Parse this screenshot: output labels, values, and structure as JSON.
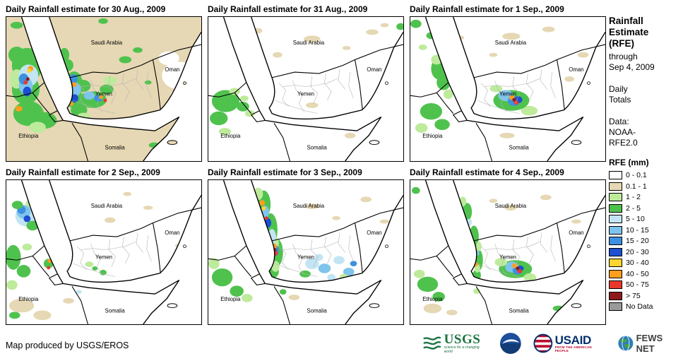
{
  "panels": [
    {
      "title": "Daily Rainfall estimate for 30 Aug., 2009",
      "base": 1,
      "patches": [
        [
          250,
          85,
          25,
          20,
          0
        ],
        [
          235,
          60,
          15,
          10,
          0
        ],
        [
          255,
          115,
          18,
          12,
          0
        ],
        [
          30,
          70,
          22,
          25,
          3
        ],
        [
          28,
          105,
          20,
          22,
          3
        ],
        [
          32,
          140,
          22,
          18,
          3
        ],
        [
          15,
          55,
          12,
          12,
          3
        ],
        [
          55,
          150,
          18,
          12,
          3
        ],
        [
          15,
          90,
          10,
          14,
          2
        ],
        [
          45,
          160,
          12,
          8,
          2
        ],
        [
          32,
          85,
          14,
          16,
          4
        ],
        [
          28,
          100,
          10,
          12,
          5
        ],
        [
          25,
          90,
          7,
          8,
          6
        ],
        [
          30,
          108,
          6,
          7,
          7
        ],
        [
          98,
          95,
          12,
          16,
          3
        ],
        [
          100,
          120,
          13,
          13,
          3
        ],
        [
          105,
          135,
          12,
          9,
          3
        ],
        [
          110,
          100,
          12,
          9,
          3
        ],
        [
          88,
          70,
          9,
          9,
          3
        ],
        [
          84,
          55,
          7,
          10,
          3
        ],
        [
          125,
          120,
          20,
          12,
          3
        ],
        [
          145,
          105,
          10,
          7,
          3
        ],
        [
          100,
          105,
          8,
          10,
          5
        ],
        [
          97,
          90,
          6,
          7,
          6
        ],
        [
          99,
          118,
          5,
          6,
          7
        ],
        [
          120,
          114,
          8,
          6,
          5
        ],
        [
          133,
          118,
          6,
          5,
          6
        ],
        [
          150,
          92,
          10,
          6,
          2
        ],
        [
          112,
          145,
          10,
          6,
          2
        ],
        [
          35,
          75,
          4,
          4,
          9
        ],
        [
          33,
          78,
          3,
          3,
          8
        ],
        [
          28,
          95,
          3,
          3,
          10
        ],
        [
          18,
          133,
          5,
          4,
          9
        ],
        [
          31,
          90,
          2.5,
          2.5,
          11
        ],
        [
          98,
          98,
          3.5,
          3.5,
          9
        ],
        [
          94,
          126,
          3,
          3,
          9
        ],
        [
          137,
          116,
          3,
          3,
          9
        ],
        [
          143,
          121,
          2.5,
          2.5,
          10
        ],
        [
          15,
          12,
          9,
          5,
          3
        ],
        [
          140,
          6,
          7,
          4,
          3
        ],
        [
          172,
          62,
          9,
          5,
          3
        ],
        [
          190,
          48,
          7,
          4,
          3
        ],
        [
          214,
          186,
          8,
          4,
          3
        ],
        [
          205,
          95,
          5,
          3,
          3
        ]
      ]
    },
    {
      "title": "Daily Rainfall estimate for 31 Aug., 2009",
      "base": 0,
      "patches": [
        [
          150,
          32,
          12,
          5,
          1
        ],
        [
          237,
          22,
          9,
          4,
          1
        ],
        [
          100,
          55,
          7,
          4,
          1
        ],
        [
          72,
          20,
          6,
          4,
          1
        ],
        [
          200,
          45,
          6,
          3,
          1
        ],
        [
          150,
          128,
          9,
          4,
          1
        ],
        [
          90,
          95,
          5,
          3,
          1
        ],
        [
          205,
          172,
          8,
          4,
          1
        ],
        [
          255,
          12,
          6,
          3,
          1
        ],
        [
          25,
          122,
          20,
          16,
          3
        ],
        [
          15,
          147,
          13,
          10,
          3
        ],
        [
          50,
          130,
          9,
          7,
          3
        ],
        [
          278,
          14,
          6,
          5,
          3
        ],
        [
          38,
          108,
          8,
          5,
          2
        ],
        [
          60,
          140,
          7,
          5,
          2
        ],
        [
          24,
          166,
          9,
          5,
          2
        ],
        [
          52,
          118,
          6,
          4,
          2
        ]
      ]
    },
    {
      "title": "Daily Rainfall estimate for 1 Sep., 2009",
      "base": 0,
      "patches": [
        [
          8,
          10,
          8,
          6,
          3
        ],
        [
          30,
          27,
          7,
          5,
          3
        ],
        [
          18,
          44,
          6,
          4,
          2
        ],
        [
          124,
          104,
          9,
          5,
          2
        ],
        [
          172,
          136,
          12,
          7,
          2
        ],
        [
          146,
          28,
          13,
          5,
          1
        ],
        [
          200,
          18,
          9,
          4,
          1
        ],
        [
          250,
          55,
          8,
          4,
          1
        ],
        [
          230,
          90,
          7,
          4,
          1
        ],
        [
          120,
          55,
          6,
          3,
          1
        ],
        [
          140,
          172,
          11,
          4,
          1
        ],
        [
          72,
          30,
          6,
          3,
          1
        ],
        [
          42,
          75,
          12,
          16,
          3
        ],
        [
          48,
          95,
          10,
          11,
          3
        ],
        [
          38,
          62,
          8,
          7,
          2
        ],
        [
          55,
          112,
          7,
          7,
          2
        ],
        [
          30,
          137,
          16,
          12,
          3
        ],
        [
          46,
          156,
          11,
          8,
          3
        ],
        [
          16,
          161,
          9,
          7,
          2
        ],
        [
          146,
          121,
          26,
          15,
          3
        ],
        [
          138,
          114,
          11,
          8,
          5
        ],
        [
          150,
          122,
          9,
          7,
          6
        ],
        [
          156,
          120,
          6,
          5,
          7
        ],
        [
          147,
          117,
          4,
          3.5,
          9
        ],
        [
          153,
          124,
          3.5,
          3,
          10
        ],
        [
          150,
          120,
          2.5,
          2.5,
          11
        ]
      ]
    },
    {
      "title": "Daily Rainfall estimate for 2 Sep., 2009",
      "base": 0,
      "patches": [
        [
          28,
          52,
          15,
          15,
          4
        ],
        [
          25,
          46,
          10,
          10,
          5
        ],
        [
          22,
          43,
          6,
          6,
          6
        ],
        [
          30,
          56,
          5,
          5,
          7
        ],
        [
          38,
          66,
          9,
          7,
          3
        ],
        [
          16,
          36,
          8,
          6,
          3
        ],
        [
          34,
          34,
          6,
          5,
          2
        ],
        [
          10,
          112,
          11,
          18,
          3
        ],
        [
          25,
          132,
          10,
          9,
          3
        ],
        [
          8,
          152,
          8,
          7,
          2
        ],
        [
          30,
          97,
          7,
          5,
          2
        ],
        [
          22,
          182,
          18,
          10,
          1
        ],
        [
          52,
          196,
          13,
          7,
          1
        ],
        [
          150,
          58,
          8,
          4,
          1
        ],
        [
          205,
          40,
          7,
          3,
          1
        ],
        [
          250,
          95,
          6,
          3,
          1
        ],
        [
          175,
          20,
          6,
          3,
          1
        ],
        [
          90,
          175,
          8,
          4,
          1
        ],
        [
          61,
          121,
          7,
          7,
          3
        ],
        [
          63,
          117,
          3.5,
          3,
          9
        ],
        [
          61,
          127,
          2.5,
          2.5,
          10
        ],
        [
          120,
          122,
          6,
          4,
          2
        ],
        [
          140,
          134,
          5,
          4,
          3
        ],
        [
          105,
          162,
          4,
          3,
          4
        ],
        [
          128,
          128,
          4,
          3,
          3
        ],
        [
          12,
          196,
          8,
          5,
          3
        ]
      ]
    },
    {
      "title": "Daily Rainfall estimate for 3 Sep., 2009",
      "base": 0,
      "patches": [
        [
          80,
          35,
          10,
          20,
          3
        ],
        [
          90,
          72,
          10,
          24,
          3
        ],
        [
          99,
          105,
          9,
          20,
          3
        ],
        [
          94,
          132,
          8,
          10,
          3
        ],
        [
          72,
          20,
          7,
          9,
          2
        ],
        [
          95,
          92,
          7,
          11,
          2
        ],
        [
          97,
          125,
          6,
          8,
          2
        ],
        [
          82,
          46,
          6,
          9,
          5
        ],
        [
          92,
          82,
          6,
          11,
          4
        ],
        [
          97,
          102,
          5,
          8,
          6
        ],
        [
          86,
          62,
          5,
          7,
          7
        ],
        [
          78,
          33,
          4,
          4,
          9
        ],
        [
          80,
          41,
          3,
          3,
          8
        ],
        [
          95,
          96,
          4,
          4,
          9
        ],
        [
          97,
          106,
          3.5,
          3.5,
          10
        ],
        [
          96,
          101,
          2.5,
          2.5,
          11
        ],
        [
          84,
          55,
          2.5,
          2.5,
          10
        ],
        [
          150,
          121,
          10,
          8,
          4
        ],
        [
          168,
          128,
          9,
          7,
          5
        ],
        [
          189,
          116,
          8,
          6,
          4
        ],
        [
          203,
          133,
          8,
          6,
          5
        ],
        [
          210,
          121,
          5,
          4,
          6
        ],
        [
          178,
          141,
          6,
          5,
          4
        ],
        [
          160,
          112,
          6,
          5,
          4
        ],
        [
          140,
          136,
          8,
          5,
          3
        ],
        [
          196,
          140,
          6,
          4,
          2
        ],
        [
          20,
          141,
          15,
          13,
          3
        ],
        [
          41,
          161,
          10,
          8,
          3
        ],
        [
          8,
          121,
          8,
          8,
          2
        ],
        [
          56,
          171,
          8,
          6,
          2
        ],
        [
          150,
          38,
          10,
          4,
          1
        ],
        [
          228,
          28,
          8,
          4,
          1
        ],
        [
          255,
          60,
          7,
          3,
          1
        ],
        [
          185,
          55,
          6,
          3,
          1
        ],
        [
          124,
          170,
          8,
          4,
          1
        ],
        [
          108,
          162,
          5,
          4,
          3
        ]
      ]
    },
    {
      "title": "Daily Rainfall estimate for 4 Sep., 2009",
      "base": 0,
      "patches": [
        [
          82,
          46,
          7,
          13,
          3
        ],
        [
          92,
          82,
          7,
          16,
          3
        ],
        [
          98,
          116,
          7,
          16,
          3
        ],
        [
          96,
          138,
          6,
          8,
          3
        ],
        [
          76,
          31,
          5,
          7,
          2
        ],
        [
          99,
          96,
          4,
          7,
          2
        ],
        [
          97,
          128,
          4,
          6,
          2
        ],
        [
          85,
          61,
          4,
          5,
          4
        ],
        [
          96,
          106,
          3.5,
          4,
          5
        ],
        [
          95,
          122,
          3,
          3,
          9
        ],
        [
          25,
          151,
          15,
          11,
          3
        ],
        [
          41,
          169,
          9,
          7,
          3
        ],
        [
          13,
          136,
          8,
          6,
          2
        ],
        [
          32,
          186,
          13,
          7,
          1
        ],
        [
          60,
          192,
          8,
          4,
          1
        ],
        [
          152,
          129,
          24,
          13,
          3
        ],
        [
          147,
          126,
          10,
          8,
          5
        ],
        [
          155,
          131,
          7,
          6,
          6
        ],
        [
          159,
          128,
          5,
          4,
          7
        ],
        [
          151,
          124,
          4,
          3.5,
          9
        ],
        [
          158,
          132,
          3.5,
          3,
          10
        ],
        [
          155,
          128,
          2.5,
          2.5,
          11
        ],
        [
          131,
          119,
          9,
          6,
          2
        ],
        [
          173,
          141,
          9,
          6,
          2
        ],
        [
          145,
          40,
          9,
          4,
          1
        ],
        [
          196,
          25,
          8,
          4,
          1
        ],
        [
          240,
          60,
          7,
          3,
          1
        ],
        [
          258,
          90,
          6,
          3,
          1
        ],
        [
          120,
          30,
          6,
          3,
          1
        ],
        [
          8,
          15,
          6,
          5,
          3
        ],
        [
          214,
          186,
          8,
          4,
          3
        ],
        [
          96,
          161,
          5,
          4,
          2
        ]
      ]
    }
  ],
  "map_labels": [
    "Saudi Arabia",
    "Oman",
    "Yemen",
    "Ethiopia",
    "Somalia"
  ],
  "sidebar": {
    "title": "Rainfall\nEstimate\n(RFE)",
    "subtitle": "through\nSep 4, 2009",
    "totals": "Daily\nTotals",
    "data_source": "Data:\nNOAA-\nRFE2.0"
  },
  "legend": {
    "title": "RFE (mm)",
    "items": [
      {
        "label": "0 - 0.1",
        "color": "#FFFFFF"
      },
      {
        "label": "0.1 - 1",
        "color": "#E6D8B4"
      },
      {
        "label": "1 - 2",
        "color": "#BDEB9B"
      },
      {
        "label": "2 - 5",
        "color": "#4FC24E"
      },
      {
        "label": "5 - 10",
        "color": "#C3E5F3"
      },
      {
        "label": "10 - 15",
        "color": "#7FC4EC"
      },
      {
        "label": "15 - 20",
        "color": "#3D90E0"
      },
      {
        "label": "20 - 30",
        "color": "#1C4FD1"
      },
      {
        "label": "30 - 40",
        "color": "#FFD530"
      },
      {
        "label": "40 - 50",
        "color": "#FF9E1F"
      },
      {
        "label": "50 - 75",
        "color": "#E8392C"
      },
      {
        "label": "> 75",
        "color": "#8E1B1B"
      },
      {
        "label": "No Data",
        "color": "#9A9A9A"
      }
    ]
  },
  "footer": {
    "attribution": "Map produced by USGS/EROS",
    "logos": {
      "usgs": {
        "name": "USGS",
        "tagline": "science for a changing world"
      },
      "usaid": {
        "name": "USAID",
        "tagline": "FROM THE AMERICAN PEOPLE"
      },
      "fews": {
        "name": "FEWS NET"
      }
    }
  }
}
